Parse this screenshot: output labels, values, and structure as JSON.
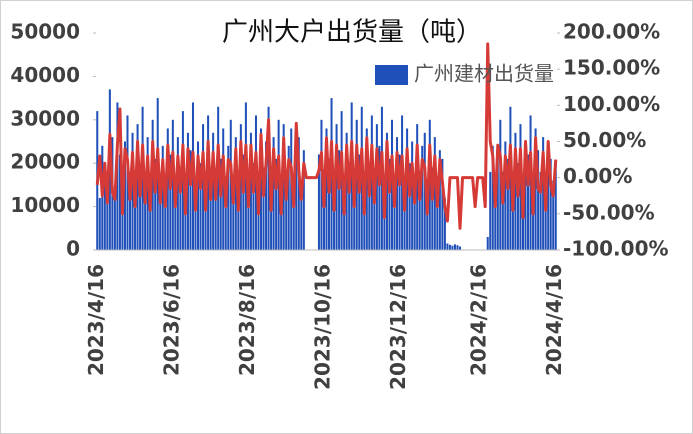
{
  "chart_data": {
    "type": "bar-line",
    "title": "广州大户出货量（吨）",
    "legend": "top-right",
    "categories": [
      "2023/4/16",
      null,
      null,
      null,
      null,
      null,
      null,
      null,
      null,
      null,
      null,
      null,
      null,
      null,
      null,
      null,
      null,
      null,
      null,
      null,
      null,
      null,
      null,
      null,
      null,
      null,
      null,
      null,
      null,
      null,
      "2023/6/16",
      null,
      null,
      null,
      null,
      null,
      null,
      null,
      null,
      null,
      null,
      null,
      null,
      null,
      null,
      null,
      null,
      null,
      null,
      null,
      null,
      null,
      null,
      null,
      null,
      null,
      null,
      null,
      null,
      null,
      "2023/8/16",
      null,
      null,
      null,
      null,
      null,
      null,
      null,
      null,
      null,
      null,
      null,
      null,
      null,
      null,
      null,
      null,
      null,
      null,
      null,
      null,
      null,
      null,
      null,
      null,
      null,
      null,
      null,
      null,
      null,
      "2023/10/16",
      null,
      null,
      null,
      null,
      null,
      null,
      null,
      null,
      null,
      null,
      null,
      null,
      null,
      null,
      null,
      null,
      null,
      null,
      null,
      null,
      null,
      null,
      null,
      null,
      null,
      null,
      null,
      null,
      null,
      "2023/12/16",
      null,
      null,
      null,
      null,
      null,
      null,
      null,
      null,
      null,
      null,
      null,
      null,
      null,
      null,
      null,
      null,
      null,
      null,
      null,
      null,
      null,
      null,
      null,
      null,
      null,
      null,
      null,
      null,
      null,
      null,
      null,
      "2024/2/16",
      null,
      null,
      null,
      null,
      null,
      null,
      null,
      null,
      null,
      null,
      null,
      null,
      null,
      null,
      null,
      null,
      null,
      null,
      null,
      null,
      null,
      null,
      null,
      null,
      null,
      null,
      null,
      null,
      null,
      "2024/4/16"
    ],
    "series": [
      {
        "name": "广州建材出货量",
        "kind": "bar",
        "color": "#1f4fb8",
        "values": [
          32000,
          12000,
          24000,
          19000,
          13000,
          37000,
          26000,
          15000,
          34000,
          22000,
          10000,
          25000,
          31000,
          18000,
          27000,
          14000,
          29000,
          20000,
          33000,
          16000,
          26000,
          12000,
          30000,
          21000,
          35000,
          17000,
          24000,
          13000,
          28000,
          22000,
          30000,
          15000,
          26000,
          19000,
          32000,
          11000,
          27000,
          23000,
          34000,
          14000,
          25000,
          20000,
          29000,
          12000,
          31000,
          18000,
          27000,
          16000,
          33000,
          21000,
          28000,
          13000,
          24000,
          30000,
          17000,
          26000,
          11000,
          29000,
          22000,
          34000,
          15000,
          27000,
          20000,
          31000,
          12000,
          28000,
          19000,
          25000,
          33000,
          14000,
          26000,
          21000,
          30000,
          11000,
          29000,
          17000,
          24000,
          28000,
          13000,
          22000,
          26000,
          16000,
          23000,
          0,
          0,
          0,
          0,
          0,
          22000,
          30000,
          14000,
          28000,
          21000,
          35000,
          16000,
          29000,
          23000,
          32000,
          13000,
          27000,
          20000,
          34000,
          15000,
          30000,
          22000,
          33000,
          14000,
          28000,
          19000,
          31000,
          17000,
          29000,
          24000,
          33000,
          12000,
          27000,
          21000,
          30000,
          16000,
          26000,
          22000,
          31000,
          13000,
          28000,
          20000,
          25000,
          15000,
          29000,
          18000,
          24000,
          27000,
          12000,
          30000,
          19000,
          26000,
          14000,
          23000,
          21000,
          12000,
          1500,
          1200,
          1000,
          1300,
          1100,
          800,
          0,
          0,
          0,
          0,
          0,
          0,
          0,
          0,
          0,
          0,
          3000,
          18000,
          24000,
          14000,
          22000,
          30000,
          18000,
          25000,
          21000,
          33000,
          16000,
          27000,
          20000,
          29000,
          12000,
          25000,
          22000,
          31000,
          14000,
          28000,
          23000,
          18000,
          26000,
          13000,
          24000,
          21000,
          16000,
          20000
        ]
      },
      {
        "kind": "line",
        "axis": "y2",
        "color": "#d63a36",
        "values": [
          -10,
          30,
          -25,
          20,
          -35,
          60,
          -20,
          -30,
          45,
          95,
          -50,
          40,
          25,
          -30,
          35,
          -40,
          50,
          -25,
          45,
          -35,
          30,
          -45,
          50,
          -20,
          40,
          -35,
          25,
          -40,
          45,
          -15,
          35,
          -40,
          30,
          -20,
          45,
          -50,
          40,
          -10,
          35,
          -45,
          30,
          -15,
          35,
          -45,
          50,
          -30,
          35,
          -30,
          45,
          -25,
          30,
          -40,
          25,
          20,
          -35,
          40,
          -45,
          50,
          -20,
          45,
          -40,
          45,
          -20,
          35,
          -50,
          60,
          -25,
          20,
          80,
          -45,
          40,
          -15,
          30,
          -50,
          55,
          -30,
          25,
          15,
          -40,
          75,
          10,
          -30,
          20,
          0,
          0,
          0,
          0,
          0,
          10,
          35,
          -40,
          55,
          -20,
          50,
          -45,
          45,
          -15,
          35,
          -50,
          45,
          -20,
          50,
          -40,
          45,
          -20,
          40,
          -50,
          55,
          -25,
          45,
          -35,
          40,
          -10,
          35,
          -55,
          50,
          -20,
          30,
          -40,
          35,
          -10,
          30,
          -45,
          40,
          -25,
          20,
          -35,
          45,
          -30,
          25,
          15,
          -50,
          45,
          -30,
          30,
          -40,
          25,
          -5,
          -40,
          -60,
          0,
          0,
          0,
          0,
          -70,
          0,
          0,
          0,
          0,
          0,
          -40,
          0,
          0,
          0,
          -40,
          185,
          50,
          30,
          -40,
          45,
          30,
          -35,
          30,
          -15,
          45,
          -45,
          40,
          -25,
          40,
          -55,
          50,
          -10,
          35,
          -50,
          55,
          -15,
          -20,
          35,
          -45,
          50,
          -10,
          -25,
          25
        ]
      }
    ],
    "ylim": [
      0,
      50000
    ],
    "yticks": [
      0,
      10000,
      20000,
      30000,
      40000,
      50000
    ],
    "y2lim": [
      -100,
      200
    ],
    "y2ticks": [
      {
        "value": -100,
        "label": "-100.00%"
      },
      {
        "value": -50,
        "label": "-50.00%"
      },
      {
        "value": 0,
        "label": "0.00%"
      },
      {
        "value": 50,
        "label": "50.00%"
      },
      {
        "value": 100,
        "label": "100.00%"
      },
      {
        "value": 150,
        "label": "150.00%"
      },
      {
        "value": 200,
        "label": "200.00%"
      }
    ]
  }
}
